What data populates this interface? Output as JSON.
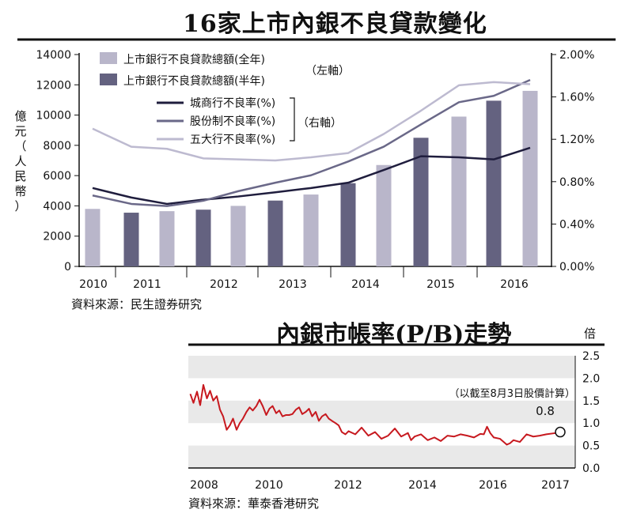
{
  "chart_data": [
    {
      "type": "bar",
      "title": "16家上市內銀不良貸款變化",
      "ylabel_left": "億元（人民幣）",
      "ylim_left": [
        0,
        14000
      ],
      "yticks_left": [
        "0",
        "2000",
        "4000",
        "6000",
        "8000",
        "10000",
        "12000",
        "14000"
      ],
      "ylim_right": [
        0,
        2.0
      ],
      "yticks_right": [
        "0.00%",
        "0.40%",
        "0.80%",
        "1.20%",
        "1.60%",
        "2.00%"
      ],
      "x_labels": [
        "2010",
        "2011",
        "2012",
        "2013",
        "2014",
        "2015",
        "2016"
      ],
      "periods": [
        "2010全年",
        "2011半年",
        "2011全年",
        "2012半年",
        "2012全年",
        "2013半年",
        "2013全年",
        "2014半年",
        "2014全年",
        "2015半年",
        "2015全年",
        "2016半年",
        "2016全年"
      ],
      "series": [
        {
          "name": "上市銀行不良貸款總額(全年)",
          "type": "bar",
          "axis": "left",
          "color": "#b9b6ca",
          "values": [
            3800,
            null,
            3650,
            null,
            4000,
            null,
            4750,
            null,
            6700,
            null,
            9900,
            null,
            11600
          ]
        },
        {
          "name": "上市銀行不良貸款總額(半年)",
          "type": "bar",
          "axis": "left",
          "color": "#646280",
          "values": [
            null,
            3550,
            null,
            3750,
            null,
            4350,
            null,
            5500,
            null,
            8500,
            null,
            10950,
            null
          ]
        },
        {
          "name": "城商行不良率(%)",
          "type": "line",
          "axis": "right",
          "color": "#1f1d3d",
          "values": [
            0.74,
            0.65,
            0.59,
            0.63,
            0.66,
            0.7,
            0.74,
            0.79,
            0.91,
            1.04,
            1.03,
            1.01,
            1.12
          ]
        },
        {
          "name": "股份制不良率(%)",
          "type": "line",
          "axis": "right",
          "color": "#6a6888",
          "values": [
            0.67,
            0.59,
            0.57,
            0.62,
            0.71,
            0.79,
            0.86,
            0.99,
            1.13,
            1.34,
            1.55,
            1.61,
            1.76
          ]
        },
        {
          "name": "五大行不良率(%)",
          "type": "line",
          "axis": "right",
          "color": "#bdbad0",
          "values": [
            1.3,
            1.13,
            1.11,
            1.02,
            1.01,
            1.0,
            1.03,
            1.07,
            1.25,
            1.47,
            1.71,
            1.74,
            1.72
          ]
        }
      ],
      "axis_notes": {
        "left": "（左軸）",
        "right": "（右軸）"
      },
      "source": "資料來源：民生證券研究",
      "legend_position": "top-left",
      "grid": false
    },
    {
      "type": "line",
      "title": "內銀市帳率(P/B)走勢",
      "ylabel": "倍",
      "ylim": [
        0,
        2.5
      ],
      "yticks": [
        "0.0",
        "0.5",
        "1.0",
        "1.5",
        "2.0",
        "2.5"
      ],
      "xlim": [
        2008,
        2017.2
      ],
      "x_labels": [
        "2008",
        "2010",
        "2012",
        "2014",
        "2016",
        "2017"
      ],
      "note": "（以截至8月3日股價計算）",
      "last_value_label": "0.8",
      "series": [
        {
          "name": "",
          "color": "#c7191f",
          "x": [
            2008.0,
            2008.08,
            2008.17,
            2008.25,
            2008.33,
            2008.42,
            2008.5,
            2008.58,
            2008.67,
            2008.75,
            2008.83,
            2008.92,
            2009.0,
            2009.08,
            2009.17,
            2009.25,
            2009.33,
            2009.42,
            2009.5,
            2009.58,
            2009.67,
            2009.75,
            2009.83,
            2009.92,
            2010.0,
            2010.08,
            2010.17,
            2010.25,
            2010.33,
            2010.42,
            2010.5,
            2010.58,
            2010.67,
            2010.75,
            2010.83,
            2010.92,
            2011.0,
            2011.08,
            2011.17,
            2011.25,
            2011.33,
            2011.42,
            2011.5,
            2011.58,
            2011.67,
            2011.75,
            2011.83,
            2011.92,
            2012.0,
            2012.17,
            2012.33,
            2012.5,
            2012.67,
            2012.83,
            2013.0,
            2013.17,
            2013.33,
            2013.5,
            2013.58,
            2013.67,
            2013.83,
            2014.0,
            2014.17,
            2014.33,
            2014.5,
            2014.67,
            2014.83,
            2015.0,
            2015.17,
            2015.33,
            2015.42,
            2015.5,
            2015.58,
            2015.67,
            2015.83,
            2016.0,
            2016.08,
            2016.17,
            2016.33,
            2016.5,
            2016.67,
            2016.83,
            2017.0,
            2017.25,
            2017.35
          ],
          "y": [
            1.65,
            1.45,
            1.7,
            1.4,
            1.85,
            1.55,
            1.72,
            1.5,
            1.6,
            1.3,
            1.15,
            0.85,
            0.95,
            1.1,
            0.85,
            1.0,
            1.1,
            1.25,
            1.35,
            1.28,
            1.38,
            1.52,
            1.38,
            1.18,
            1.32,
            1.38,
            1.22,
            1.28,
            1.15,
            1.18,
            1.18,
            1.2,
            1.3,
            1.35,
            1.2,
            1.25,
            1.32,
            1.15,
            1.25,
            1.05,
            1.15,
            1.2,
            1.1,
            1.05,
            1.0,
            0.95,
            0.8,
            0.75,
            0.82,
            0.75,
            0.9,
            0.72,
            0.8,
            0.65,
            0.72,
            0.88,
            0.7,
            0.78,
            0.62,
            0.7,
            0.75,
            0.62,
            0.68,
            0.6,
            0.72,
            0.7,
            0.75,
            0.72,
            0.68,
            0.76,
            0.75,
            0.92,
            0.78,
            0.68,
            0.65,
            0.52,
            0.55,
            0.62,
            0.58,
            0.75,
            0.7,
            0.72,
            0.75,
            0.78,
            0.8
          ]
        }
      ],
      "source": "資料來源：華泰香港研究",
      "grid": "horizontal bands"
    }
  ]
}
